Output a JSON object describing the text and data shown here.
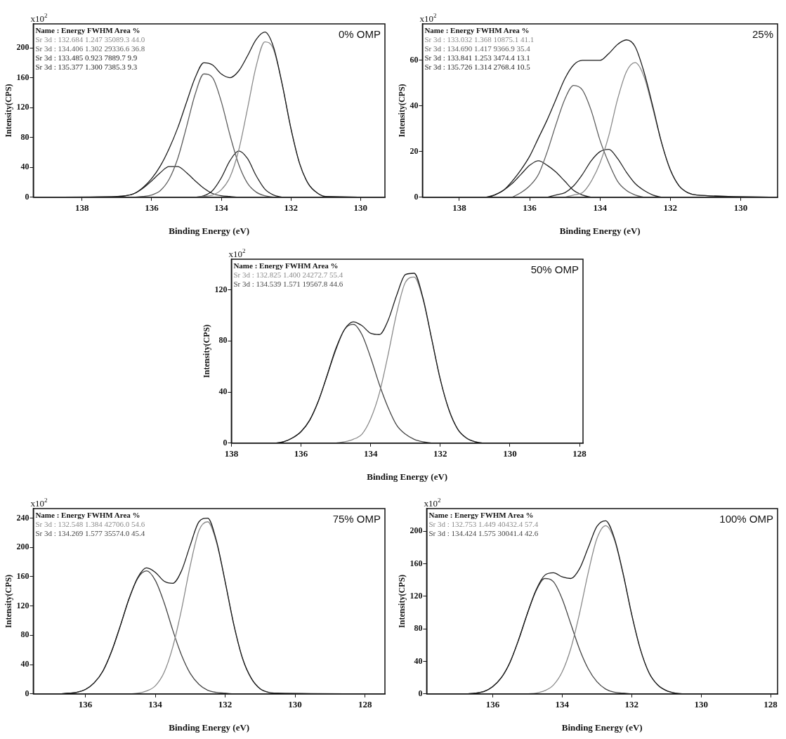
{
  "chart_data": [
    {
      "type": "line",
      "title": "0% OMP",
      "xlabel": "Binding Energy (eV)",
      "ylabel": "Intensity(CPS)",
      "marker": "none",
      "annotations": [
        "x10$^{2}$",
        "Name : Energy FWHM Area %",
        "Sr 3d : 132.684 1.247 35089.3 44.0",
        "Sr 3d : 134.406 1.302 29336.6 36.8",
        "Sr 3d : 133.485 0.923 7889.7 9.9",
        "Sr 3d : 135.377 1.300 7385.3 9.3"
      ],
      "xlim": [
        139.4,
        129.3
      ],
      "xticks": [
        138,
        136,
        134,
        132,
        130
      ],
      "ylim": [
        0,
        232
      ],
      "yticks": [
        0,
        40,
        80,
        120,
        160,
        200
      ],
      "x": [
        139.4,
        137,
        136.75,
        136.5,
        136.25,
        136,
        135.75,
        135.5,
        135.25,
        135,
        134.75,
        134.5,
        134.25,
        134,
        133.75,
        133.5,
        133.25,
        133,
        132.75,
        132.5,
        132.25,
        132,
        131.75,
        131.5,
        131.25,
        131,
        129.3
      ],
      "series": [
        {
          "color": "#1a1a1a",
          "values": [
            0,
            1,
            2,
            5,
            13,
            25,
            42,
            65,
            93,
            127,
            160,
            180,
            177,
            165,
            160,
            169,
            189,
            211,
            221,
            201,
            151,
            92,
            45,
            18,
            6,
            1,
            0
          ]
        },
        {
          "color": "#8a8a8a",
          "values": [
            null,
            null,
            null,
            null,
            null,
            null,
            null,
            null,
            null,
            null,
            0,
            1,
            3,
            10,
            27,
            63,
            118,
            175,
            208,
            198,
            151,
            92,
            45,
            18,
            6,
            1,
            0
          ]
        },
        {
          "color": "#5c5c5c",
          "values": [
            null,
            null,
            null,
            0,
            1,
            3,
            9,
            24,
            52,
            94,
            138,
            165,
            160,
            128,
            83,
            44,
            19,
            7,
            2,
            0,
            null,
            null,
            null,
            null,
            null,
            null,
            null
          ]
        },
        {
          "color": "#222222",
          "values": [
            null,
            null,
            null,
            null,
            null,
            null,
            null,
            null,
            null,
            null,
            0,
            2,
            9,
            26,
            49,
            62,
            52,
            29,
            11,
            3,
            0,
            null,
            null,
            null,
            null,
            null,
            null
          ]
        },
        {
          "color": "#222222",
          "values": [
            null,
            1,
            2,
            5,
            12,
            22,
            33,
            41,
            41,
            33,
            22,
            12,
            5,
            2,
            1,
            0,
            null,
            null,
            null,
            null,
            null,
            null,
            null,
            null,
            null,
            null,
            null
          ]
        }
      ]
    },
    {
      "type": "line",
      "title": "25%",
      "xlabel": "Binding Energy (eV)",
      "ylabel": "Intensity(CPS)",
      "marker": "none",
      "annotations": [
        "x10$^{2}$",
        "Name : Energy FWHM Area %",
        "Sr 3d : 133.032 1.368 10875.1 41.1",
        "Sr 3d : 134.690 1.417 9366.9 35.4",
        "Sr 3d : 133.841 1.253 3474.4 13.1",
        "Sr 3d : 135.726 1.314 2768.4 10.5"
      ],
      "xlim": [
        139.05,
        128.95
      ],
      "xticks": [
        138,
        136,
        134,
        132,
        130
      ],
      "ylim": [
        0,
        76
      ],
      "yticks": [
        0,
        20,
        40,
        60
      ],
      "x": [
        139.05,
        137.5,
        137.25,
        137,
        136.75,
        136.5,
        136.25,
        136,
        135.75,
        135.5,
        135.25,
        135,
        134.75,
        134.5,
        134.25,
        134,
        133.75,
        133.5,
        133.25,
        133,
        132.75,
        132.5,
        132.25,
        132,
        131.75,
        131.5,
        131.25,
        128.95
      ],
      "series": [
        {
          "color": "#1a1a1a",
          "values": [
            0,
            0,
            0,
            1,
            3,
            7,
            12,
            18,
            26,
            34,
            43,
            52,
            58,
            60,
            60,
            60,
            63,
            67,
            69,
            66,
            55,
            40,
            24,
            12,
            5,
            2,
            1,
            0
          ]
        },
        {
          "color": "#8a8a8a",
          "values": [
            null,
            null,
            null,
            null,
            null,
            null,
            null,
            null,
            null,
            null,
            null,
            0,
            1,
            2,
            7,
            15,
            27,
            43,
            55,
            59,
            53,
            39,
            24,
            12,
            5,
            2,
            1,
            0
          ]
        },
        {
          "color": "#5c5c5c",
          "values": [
            null,
            null,
            null,
            null,
            null,
            0,
            2,
            5,
            10,
            20,
            32,
            43,
            49,
            47,
            38,
            25,
            15,
            7,
            3,
            1,
            0,
            null,
            null,
            null,
            null,
            null,
            null,
            null
          ]
        },
        {
          "color": "#222222",
          "values": [
            null,
            null,
            null,
            null,
            null,
            null,
            null,
            null,
            null,
            0,
            1,
            2,
            5,
            10,
            16,
            20,
            21,
            17,
            11,
            6,
            3,
            1,
            0,
            null,
            null,
            null,
            null,
            null
          ]
        },
        {
          "color": "#222222",
          "values": [
            null,
            null,
            0,
            1,
            3,
            6,
            10,
            14,
            16,
            14,
            11,
            7,
            3,
            1,
            0,
            null,
            null,
            null,
            null,
            null,
            null,
            null,
            null,
            null,
            null,
            null,
            null,
            null
          ]
        }
      ]
    },
    {
      "type": "line",
      "title": "50% OMP",
      "xlabel": "Binding Energy (eV)",
      "ylabel": "Intensity(CPS)",
      "marker": "none",
      "annotations": [
        "x10$^{2}$",
        "Name : Energy FWHM Area %",
        "Sr 3d : 132.825 1.400 24272.7 55.4",
        "Sr 3d : 134.539 1.571 19567.8 44.6"
      ],
      "xlim": [
        138,
        127.9
      ],
      "xticks": [
        138,
        136,
        134,
        132,
        130,
        128
      ],
      "ylim": [
        0,
        144
      ],
      "yticks": [
        0,
        40,
        80,
        120
      ],
      "x": [
        138,
        137,
        136.75,
        136.5,
        136.25,
        136,
        135.75,
        135.5,
        135.25,
        135,
        134.75,
        134.5,
        134.25,
        134,
        133.75,
        133.5,
        133.25,
        133,
        132.75,
        132.5,
        132.25,
        132,
        131.75,
        131.5,
        131.25,
        131,
        130.75,
        127.9
      ],
      "series": [
        {
          "color": "#1a1a1a",
          "values": [
            0,
            0,
            0,
            1,
            4,
            9,
            18,
            33,
            53,
            74,
            89,
            95,
            92,
            86,
            85,
            96,
            116,
            132,
            133,
            114,
            82,
            50,
            26,
            11,
            4,
            1,
            0,
            0
          ]
        },
        {
          "color": "#8a8a8a",
          "values": [
            null,
            null,
            null,
            null,
            null,
            null,
            null,
            null,
            null,
            0,
            1,
            3,
            7,
            19,
            39,
            69,
            102,
            126,
            130,
            113,
            82,
            50,
            26,
            11,
            4,
            1,
            0,
            null
          ]
        },
        {
          "color": "#444444",
          "values": [
            null,
            null,
            0,
            1,
            4,
            9,
            18,
            33,
            53,
            73,
            89,
            93,
            85,
            67,
            46,
            28,
            14,
            7,
            3,
            1,
            0,
            null,
            null,
            null,
            null,
            null,
            null,
            null
          ]
        }
      ]
    },
    {
      "type": "line",
      "title": "75% OMP",
      "xlabel": "Binding Energy (eV)",
      "ylabel": "Intensity(CPS)",
      "marker": "none",
      "annotations": [
        "x10$^{2}$",
        "Name : Energy FWHM Area %",
        "Sr 3d : 132.548 1.384 42706.0 54.6",
        "Sr 3d : 134.269 1.577 35574.0 45.4"
      ],
      "xlim": [
        137.49,
        127.43
      ],
      "xticks": [
        136,
        134,
        132,
        130,
        128
      ],
      "ylim": [
        0,
        253
      ],
      "yticks": [
        0,
        40,
        80,
        120,
        160,
        200,
        240
      ],
      "x": [
        137.49,
        136.75,
        136.5,
        136.25,
        136,
        135.75,
        135.5,
        135.25,
        135,
        134.75,
        134.5,
        134.25,
        134,
        133.75,
        133.5,
        133.25,
        133,
        132.75,
        132.5,
        132.25,
        132,
        131.75,
        131.5,
        131.25,
        131,
        130.75,
        130.5,
        127.43
      ],
      "series": [
        {
          "color": "#1a1a1a",
          "values": [
            0,
            0,
            1,
            2,
            6,
            15,
            31,
            58,
            93,
            130,
            159,
            172,
            166,
            154,
            151,
            168,
            203,
            235,
            240,
            209,
            153,
            94,
            48,
            21,
            7,
            2,
            1,
            0
          ]
        },
        {
          "color": "#8a8a8a",
          "values": [
            null,
            null,
            null,
            null,
            null,
            null,
            null,
            null,
            null,
            0,
            1,
            4,
            11,
            29,
            64,
            115,
            175,
            223,
            235,
            207,
            153,
            94,
            48,
            21,
            7,
            2,
            null,
            null
          ]
        },
        {
          "color": "#444444",
          "values": [
            null,
            0,
            1,
            2,
            6,
            15,
            31,
            58,
            93,
            130,
            158,
            168,
            155,
            125,
            87,
            53,
            28,
            13,
            5,
            2,
            1,
            0,
            null,
            null,
            null,
            null,
            null,
            null
          ]
        }
      ]
    },
    {
      "type": "line",
      "title": "100% OMP",
      "xlabel": "Binding Energy (eV)",
      "ylabel": "Intensity(CPS)",
      "marker": "none",
      "annotations": [
        "x10$^{2}$",
        "Name : Energy FWHM Area %",
        "Sr 3d : 132.753 1.449 40432.4 57.4",
        "Sr 3d : 134.424 1.575 30041.4 42.6"
      ],
      "xlim": [
        137.9,
        127.8
      ],
      "xticks": [
        136,
        134,
        132,
        130,
        128
      ],
      "ylim": [
        0,
        228
      ],
      "yticks": [
        0,
        40,
        80,
        120,
        160,
        200
      ],
      "x": [
        137.9,
        137,
        136.75,
        136.5,
        136.25,
        136,
        135.75,
        135.5,
        135.25,
        135,
        134.75,
        134.5,
        134.25,
        134,
        133.75,
        133.5,
        133.25,
        133,
        132.75,
        132.5,
        132.25,
        132,
        131.75,
        131.5,
        131.25,
        131,
        130.75,
        130.5,
        127.8
      ],
      "series": [
        {
          "color": "#1a1a1a",
          "values": [
            0,
            0,
            0,
            1,
            3,
            9,
            20,
            39,
            67,
            99,
            128,
            146,
            149,
            144,
            142,
            154,
            180,
            206,
            213,
            192,
            149,
            98,
            55,
            26,
            11,
            4,
            1,
            0,
            0
          ]
        },
        {
          "color": "#8a8a8a",
          "values": [
            null,
            null,
            null,
            null,
            null,
            null,
            null,
            null,
            null,
            0,
            1,
            4,
            11,
            27,
            56,
            99,
            149,
            191,
            207,
            190,
            148,
            98,
            55,
            26,
            11,
            4,
            1,
            0,
            null
          ]
        },
        {
          "color": "#444444",
          "values": [
            null,
            null,
            0,
            1,
            3,
            9,
            20,
            39,
            67,
            99,
            127,
            142,
            138,
            117,
            86,
            55,
            31,
            15,
            6,
            2,
            1,
            0,
            null,
            null,
            null,
            null,
            null,
            null,
            null
          ]
        }
      ]
    }
  ]
}
